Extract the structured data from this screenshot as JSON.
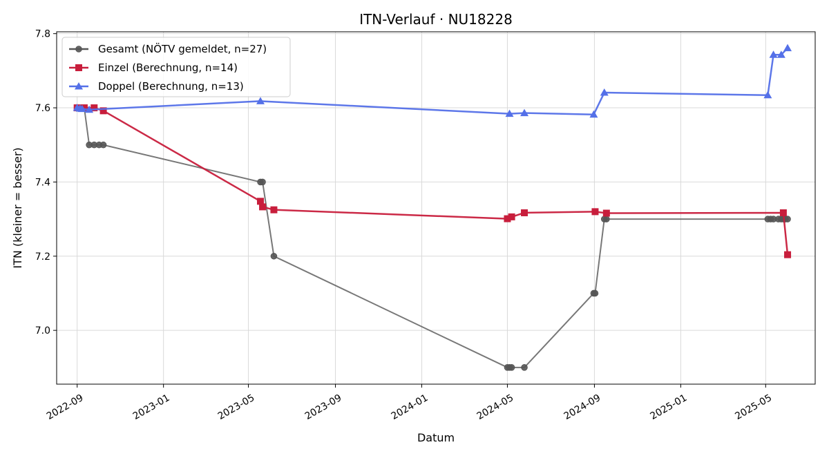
{
  "chart_data": {
    "type": "line",
    "title": "ITN-Verlauf · NU18228",
    "xlabel": "Datum",
    "ylabel": "ITN  (kleiner = besser)",
    "x_axis": "date",
    "xlim": [
      "2022-08-03",
      "2025-07-10"
    ],
    "ylim": [
      6.855,
      7.805
    ],
    "x_ticks": [
      "2022-09-01",
      "2023-01-01",
      "2023-05-01",
      "2023-09-01",
      "2024-01-01",
      "2024-05-01",
      "2024-09-01",
      "2025-01-01",
      "2025-05-01"
    ],
    "x_tick_labels": [
      "2022-09",
      "2023-01",
      "2023-05",
      "2023-09",
      "2024-01",
      "2024-05",
      "2024-09",
      "2025-01",
      "2025-05"
    ],
    "y_ticks": [
      7.0,
      7.2,
      7.4,
      7.6,
      7.8
    ],
    "y_tick_labels": [
      "7.0",
      "7.2",
      "7.4",
      "7.6",
      "7.8"
    ],
    "grid": true,
    "legend": "top-left",
    "series": [
      {
        "name": "Gesamt (NÖTV gemeldet, n=27)",
        "color": "#555555",
        "marker": "circle",
        "points": [
          {
            "x": "2022-09-01",
            "y": 7.6
          },
          {
            "x": "2022-09-05",
            "y": 7.6
          },
          {
            "x": "2022-09-08",
            "y": 7.6
          },
          {
            "x": "2022-09-11",
            "y": 7.6
          },
          {
            "x": "2022-09-18",
            "y": 7.5
          },
          {
            "x": "2022-09-25",
            "y": 7.5
          },
          {
            "x": "2022-10-02",
            "y": 7.5
          },
          {
            "x": "2022-10-08",
            "y": 7.5
          },
          {
            "x": "2023-05-18",
            "y": 7.4
          },
          {
            "x": "2023-05-21",
            "y": 7.4
          },
          {
            "x": "2023-06-06",
            "y": 7.2
          },
          {
            "x": "2024-05-01",
            "y": 6.9
          },
          {
            "x": "2024-05-04",
            "y": 6.9
          },
          {
            "x": "2024-05-07",
            "y": 6.9
          },
          {
            "x": "2024-05-25",
            "y": 6.9
          },
          {
            "x": "2024-08-31",
            "y": 7.1
          },
          {
            "x": "2024-09-02",
            "y": 7.1
          },
          {
            "x": "2024-09-15",
            "y": 7.3
          },
          {
            "x": "2024-09-18",
            "y": 7.3
          },
          {
            "x": "2025-05-04",
            "y": 7.3
          },
          {
            "x": "2025-05-08",
            "y": 7.3
          },
          {
            "x": "2025-05-12",
            "y": 7.3
          },
          {
            "x": "2025-05-19",
            "y": 7.3
          },
          {
            "x": "2025-05-23",
            "y": 7.3
          },
          {
            "x": "2025-05-26",
            "y": 7.3
          },
          {
            "x": "2025-05-29",
            "y": 7.3
          },
          {
            "x": "2025-06-01",
            "y": 7.3
          }
        ]
      },
      {
        "name": "Einzel (Berechnung, n=14)",
        "color": "#c81e3c",
        "marker": "square",
        "points": [
          {
            "x": "2022-09-01",
            "y": 7.6
          },
          {
            "x": "2022-09-11",
            "y": 7.6
          },
          {
            "x": "2022-09-25",
            "y": 7.6
          },
          {
            "x": "2022-10-08",
            "y": 7.592
          },
          {
            "x": "2023-05-18",
            "y": 7.348
          },
          {
            "x": "2023-05-21",
            "y": 7.333
          },
          {
            "x": "2023-06-06",
            "y": 7.325
          },
          {
            "x": "2024-05-01",
            "y": 7.301
          },
          {
            "x": "2024-05-07",
            "y": 7.306
          },
          {
            "x": "2024-05-25",
            "y": 7.317
          },
          {
            "x": "2024-09-02",
            "y": 7.32
          },
          {
            "x": "2024-09-18",
            "y": 7.316
          },
          {
            "x": "2025-05-26",
            "y": 7.317
          },
          {
            "x": "2025-06-01",
            "y": 7.204
          }
        ]
      },
      {
        "name": "Doppel (Berechnung, n=13)",
        "color": "#5470e8",
        "marker": "triangle",
        "points": [
          {
            "x": "2022-09-01",
            "y": 7.6
          },
          {
            "x": "2022-09-05",
            "y": 7.598
          },
          {
            "x": "2022-09-08",
            "y": 7.597
          },
          {
            "x": "2022-09-18",
            "y": 7.595
          },
          {
            "x": "2023-05-18",
            "y": 7.618
          },
          {
            "x": "2024-05-04",
            "y": 7.584
          },
          {
            "x": "2024-05-25",
            "y": 7.586
          },
          {
            "x": "2024-08-31",
            "y": 7.582
          },
          {
            "x": "2024-09-15",
            "y": 7.641
          },
          {
            "x": "2025-05-04",
            "y": 7.634
          },
          {
            "x": "2025-05-12",
            "y": 7.743
          },
          {
            "x": "2025-05-23",
            "y": 7.743
          },
          {
            "x": "2025-06-01",
            "y": 7.761
          }
        ]
      }
    ]
  }
}
